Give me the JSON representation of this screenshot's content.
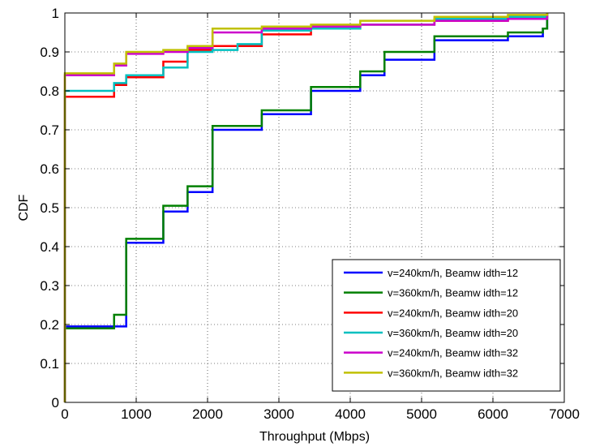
{
  "chart_data": {
    "type": "line",
    "step": true,
    "title": "",
    "xlabel": "Throughput (Mbps)",
    "ylabel": "CDF",
    "xlim": [
      0,
      7000
    ],
    "ylim": [
      0,
      1
    ],
    "xticks": [
      0,
      1000,
      2000,
      3000,
      4000,
      5000,
      6000,
      7000
    ],
    "yticks": [
      0,
      0.1,
      0.2,
      0.3,
      0.4,
      0.5,
      0.6,
      0.7,
      0.8,
      0.9,
      1
    ],
    "grid": true,
    "legend_position": "bottom-right",
    "series": [
      {
        "name": "v=240km/h, Beamw idth=12",
        "color": "#0000ff",
        "x": [
          0,
          0,
          690,
          860,
          1380,
          1720,
          2070,
          2760,
          3450,
          4140,
          4480,
          5180,
          6210,
          6700,
          6760
        ],
        "y": [
          0,
          0.195,
          0.195,
          0.41,
          0.49,
          0.54,
          0.7,
          0.74,
          0.8,
          0.84,
          0.88,
          0.93,
          0.94,
          0.96,
          1.0
        ]
      },
      {
        "name": "v=360km/h, Beamw idth=12",
        "color": "#008000",
        "x": [
          0,
          0,
          690,
          860,
          1380,
          1720,
          2070,
          2760,
          3450,
          4140,
          4480,
          5180,
          6210,
          6700,
          6760
        ],
        "y": [
          0,
          0.19,
          0.225,
          0.42,
          0.505,
          0.555,
          0.71,
          0.75,
          0.81,
          0.85,
          0.9,
          0.94,
          0.95,
          0.96,
          1.0
        ]
      },
      {
        "name": "v=240km/h, Beamw idth=20",
        "color": "#ff0000",
        "x": [
          0,
          0,
          690,
          860,
          1380,
          1720,
          2070,
          2760,
          3450,
          4140,
          5180,
          6210,
          6760
        ],
        "y": [
          0,
          0.785,
          0.815,
          0.835,
          0.875,
          0.905,
          0.915,
          0.945,
          0.96,
          0.97,
          0.98,
          0.99,
          1.0
        ]
      },
      {
        "name": "v=360km/h, Beamw idth=20",
        "color": "#00c0c0",
        "x": [
          0,
          0,
          690,
          860,
          1380,
          1720,
          2070,
          2420,
          2760,
          3450,
          4140,
          5180,
          6210,
          6760
        ],
        "y": [
          0,
          0.8,
          0.82,
          0.84,
          0.86,
          0.9,
          0.905,
          0.92,
          0.955,
          0.96,
          0.97,
          0.985,
          0.99,
          1.0
        ]
      },
      {
        "name": "v=240km/h, Beamw idth=32",
        "color": "#cc00cc",
        "x": [
          0,
          0,
          690,
          860,
          1380,
          1720,
          2070,
          2760,
          3450,
          4140,
          5180,
          6210,
          6760
        ],
        "y": [
          0,
          0.84,
          0.865,
          0.895,
          0.9,
          0.91,
          0.95,
          0.96,
          0.965,
          0.97,
          0.98,
          0.985,
          1.0
        ]
      },
      {
        "name": "v=360km/h, Beamw idth=32",
        "color": "#c0c000",
        "x": [
          0,
          0,
          690,
          860,
          1380,
          1720,
          2070,
          2760,
          3450,
          4140,
          5180,
          6210,
          6760
        ],
        "y": [
          0,
          0.845,
          0.87,
          0.9,
          0.905,
          0.915,
          0.96,
          0.965,
          0.97,
          0.98,
          0.99,
          0.995,
          1.0
        ]
      }
    ]
  }
}
